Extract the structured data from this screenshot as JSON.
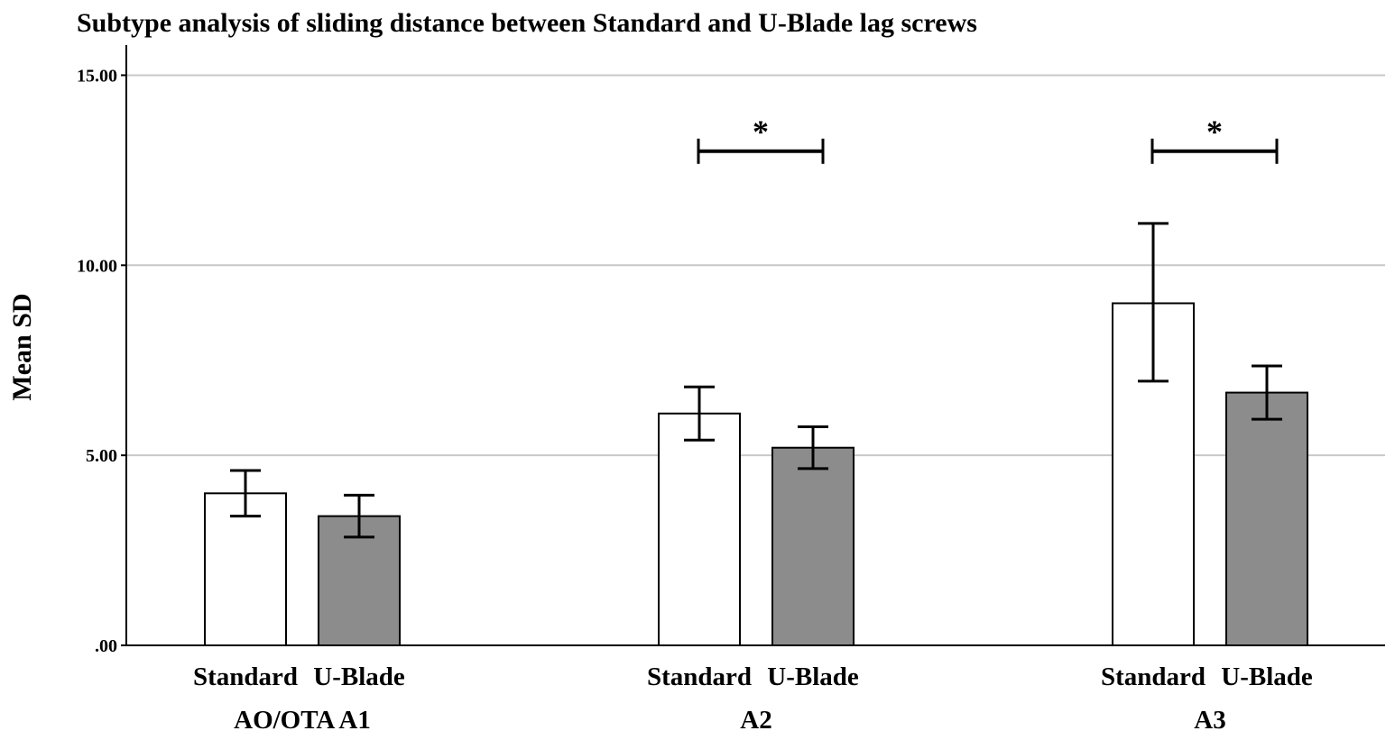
{
  "chart_data": {
    "type": "bar",
    "title": "Subtype analysis of sliding distance between Standard and U-Blade lag screws",
    "ylabel": "Mean SD",
    "xlabel": "",
    "ylim": [
      0,
      15.7
    ],
    "yticks": [
      0,
      5,
      10,
      15
    ],
    "ytick_labels": [
      ".00",
      "5.00",
      "10.00",
      "15.00"
    ],
    "grid": true,
    "groups": [
      "AO/OTA A1",
      "A2",
      "A3"
    ],
    "categories": [
      "Standard",
      "U-Blade"
    ],
    "series": [
      {
        "colors": [
          "#ffffff",
          "#8c8c8c"
        ],
        "values": [
          [
            4.0,
            3.4
          ],
          [
            6.1,
            5.2
          ],
          [
            9.0,
            6.65
          ]
        ],
        "error_low": [
          [
            3.4,
            2.85
          ],
          [
            5.4,
            4.65
          ],
          [
            6.95,
            5.95
          ]
        ],
        "error_high": [
          [
            4.6,
            3.95
          ],
          [
            6.8,
            5.75
          ],
          [
            11.1,
            7.35
          ]
        ]
      }
    ],
    "significance": [
      {
        "group_index": 1,
        "y": 13.0,
        "label": "*"
      },
      {
        "group_index": 2,
        "y": 13.0,
        "label": "*"
      }
    ]
  }
}
